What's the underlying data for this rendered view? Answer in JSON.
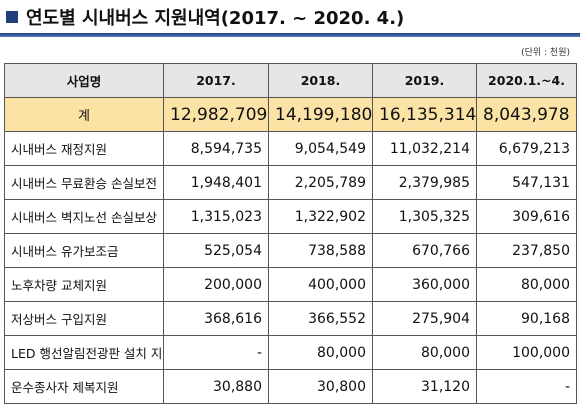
{
  "header": {
    "title": "연도별 시내버스 지원내역(2017. ~ 2020. 4.)",
    "unit": "(단위 : 천원)"
  },
  "table": {
    "columns": [
      "사업명",
      "2017.",
      "2018.",
      "2019.",
      "2020.1.~4."
    ],
    "total": [
      "계",
      "12,982,709",
      "14,199,180",
      "16,135,314",
      "8,043,978"
    ],
    "rows": [
      [
        "시내버스 재정지원",
        "8,594,735",
        "9,054,549",
        "11,032,214",
        "6,679,213"
      ],
      [
        "시내버스 무료환승 손실보전",
        "1,948,401",
        "2,205,789",
        "2,379,985",
        "547,131"
      ],
      [
        "시내버스 벽지노선 손실보상",
        "1,315,023",
        "1,322,902",
        "1,305,325",
        "309,616"
      ],
      [
        "시내버스 유가보조금",
        "525,054",
        "738,588",
        "670,766",
        "237,850"
      ],
      [
        "노후차량 교체지원",
        "200,000",
        "400,000",
        "360,000",
        "80,000"
      ],
      [
        "저상버스 구입지원",
        "368,616",
        "366,552",
        "275,904",
        "90,168"
      ],
      [
        "LED 행선알림전광판 설치 지원",
        "-",
        "80,000",
        "80,000",
        "100,000"
      ],
      [
        "운수종사자 제복지원",
        "30,880",
        "30,800",
        "31,120",
        "-"
      ]
    ]
  }
}
